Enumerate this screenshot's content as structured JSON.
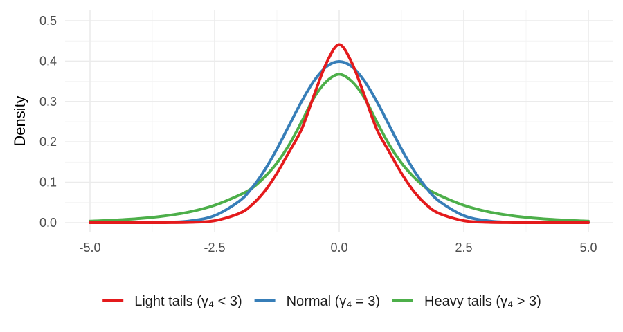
{
  "chart_data": {
    "type": "line",
    "xlabel": "",
    "ylabel": "Density",
    "xlim": [
      -5,
      5
    ],
    "ylim": [
      0,
      0.5
    ],
    "x_ticks": [
      "-5.0",
      "-2.5",
      "0.0",
      "2.5",
      "5.0"
    ],
    "y_ticks": [
      "0.0",
      "0.1",
      "0.2",
      "0.3",
      "0.4",
      "0.5"
    ],
    "grid": true,
    "legend_position": "bottom",
    "x": [
      -5,
      -4.5,
      -4,
      -3.5,
      -3,
      -2.5,
      -2,
      -1.75,
      -1.5,
      -1.25,
      -1,
      -0.75,
      -0.5,
      -0.25,
      0,
      0.25,
      0.5,
      0.75,
      1,
      1.25,
      1.5,
      1.75,
      2,
      2.5,
      3,
      3.5,
      4,
      4.5,
      5
    ],
    "series": [
      {
        "name": "Light tails  (γ₄ < 3)",
        "color": "#e41a1c",
        "values": [
          0,
          0,
          0,
          0.0001,
          0.0008,
          0.0049,
          0.0233,
          0.0445,
          0.0774,
          0.1224,
          0.1764,
          0.2326,
          0.3175,
          0.3969,
          0.441,
          0.3969,
          0.3175,
          0.2326,
          0.1764,
          0.1224,
          0.0774,
          0.0445,
          0.0233,
          0.0049,
          0.0008,
          0.0001,
          0,
          0,
          0
        ]
      },
      {
        "name": "Normal  (γ₄ = 3)",
        "color": "#377eb8",
        "values": [
          0,
          0,
          0.0001,
          0.0009,
          0.0044,
          0.0175,
          0.054,
          0.0863,
          0.1295,
          0.1826,
          0.242,
          0.3011,
          0.3521,
          0.3867,
          0.3989,
          0.3867,
          0.3521,
          0.3011,
          0.242,
          0.1826,
          0.1295,
          0.0863,
          0.054,
          0.0175,
          0.0044,
          0.0009,
          0.0001,
          0,
          0
        ]
      },
      {
        "name": "Heavy tails  (γ₄ > 3)",
        "color": "#4daf4a",
        "values": [
          0.0038,
          0.0064,
          0.0104,
          0.0168,
          0.0269,
          0.0433,
          0.0686,
          0.0856,
          0.1128,
          0.1479,
          0.1941,
          0.2509,
          0.3106,
          0.3503,
          0.3675,
          0.3503,
          0.3106,
          0.2509,
          0.1941,
          0.1479,
          0.1128,
          0.0856,
          0.0686,
          0.0433,
          0.0269,
          0.0168,
          0.0104,
          0.0064,
          0.0038
        ]
      }
    ]
  }
}
